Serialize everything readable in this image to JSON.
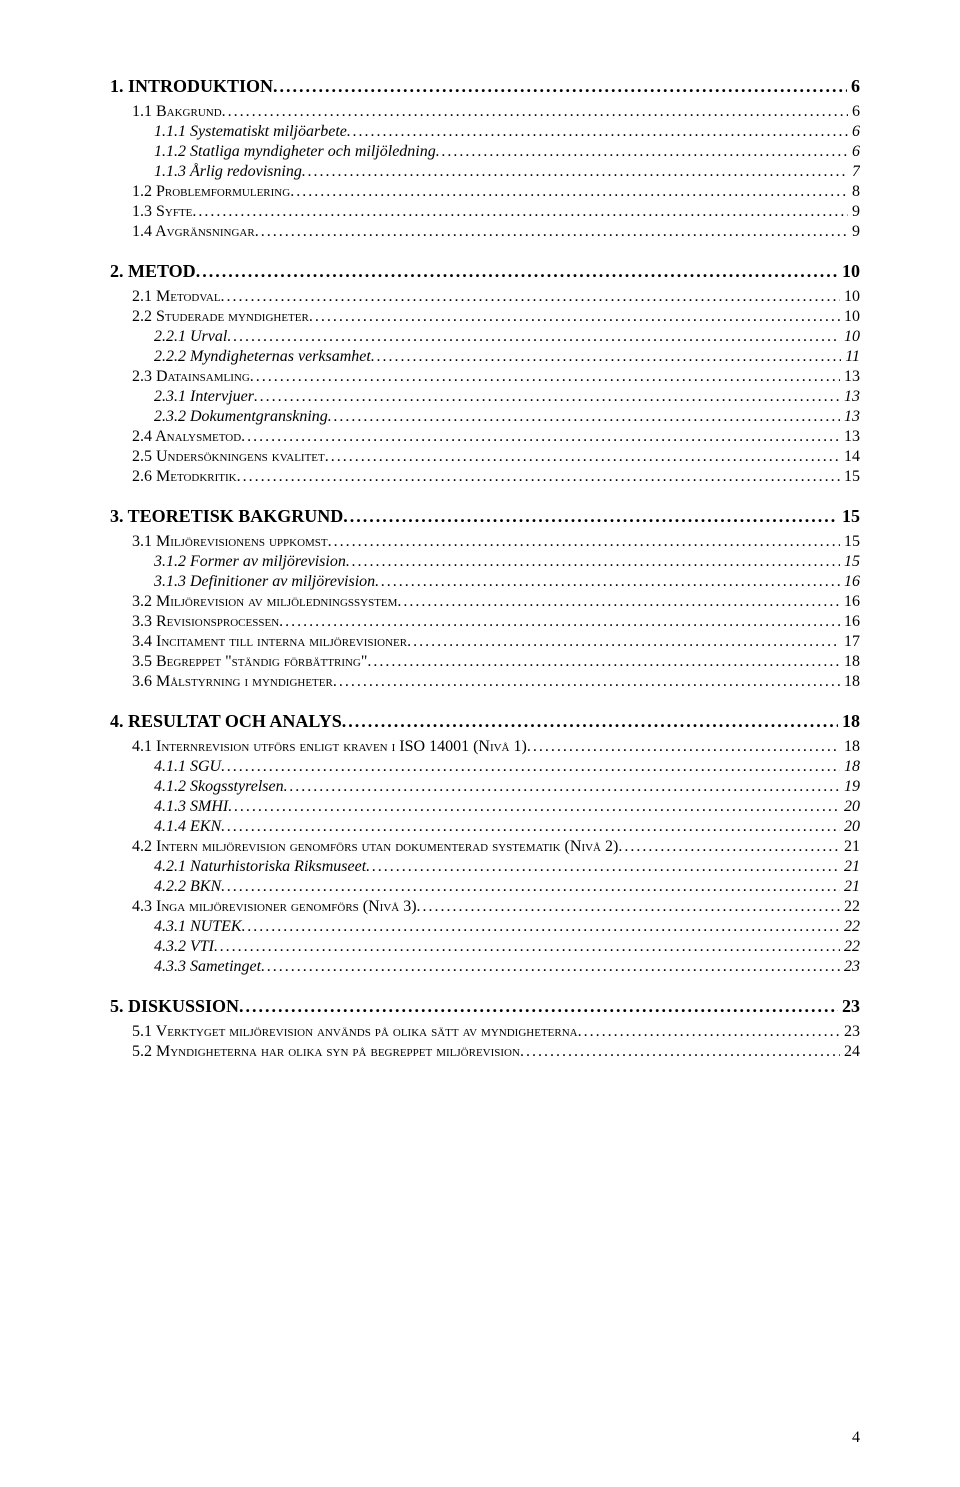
{
  "page_number": "4",
  "entries": [
    {
      "level": 1,
      "label": "1. INTRODUKTION",
      "page": "6"
    },
    {
      "level": 2,
      "label": "1.1 Bakgrund",
      "page": "6"
    },
    {
      "level": 3,
      "label": "1.1.1 Systematiskt miljöarbete",
      "page": "6"
    },
    {
      "level": 3,
      "label": "1.1.2 Statliga myndigheter och miljöledning",
      "page": "6"
    },
    {
      "level": 3,
      "label": "1.1.3 Årlig redovisning",
      "page": "7"
    },
    {
      "level": 2,
      "label": "1.2 Problemformulering",
      "page": "8"
    },
    {
      "level": 2,
      "label": "1.3 Syfte",
      "page": "9"
    },
    {
      "level": 2,
      "label": "1.4 Avgränsningar",
      "page": "9"
    },
    {
      "level": 1,
      "label": "2. METOD",
      "page": "10"
    },
    {
      "level": 2,
      "label": "2.1 Metodval",
      "page": "10"
    },
    {
      "level": 2,
      "label": "2.2 Studerade myndigheter",
      "page": "10"
    },
    {
      "level": 3,
      "label": "2.2.1 Urval",
      "page": "10"
    },
    {
      "level": 3,
      "label": "2.2.2 Myndigheternas verksamhet",
      "page": "11"
    },
    {
      "level": 2,
      "label": "2.3 Datainsamling",
      "page": "13"
    },
    {
      "level": 3,
      "label": "2.3.1 Intervjuer",
      "page": "13"
    },
    {
      "level": 3,
      "label": "2.3.2 Dokumentgranskning",
      "page": "13"
    },
    {
      "level": 2,
      "label": "2.4 Analysmetod",
      "page": "13"
    },
    {
      "level": 2,
      "label": "2.5 Undersökningens kvalitet",
      "page": "14"
    },
    {
      "level": 2,
      "label": "2.6 Metodkritik",
      "page": "15"
    },
    {
      "level": 1,
      "label": "3.    TEORETISK BAKGRUND",
      "page": "15"
    },
    {
      "level": 2,
      "label": "3.1 Miljörevisionens uppkomst",
      "page": "15"
    },
    {
      "level": 3,
      "label": "3.1.2 Former av miljörevision",
      "page": "15"
    },
    {
      "level": 3,
      "label": "3.1.3 Definitioner av miljörevision",
      "page": "16"
    },
    {
      "level": 2,
      "label": "3.2 Miljörevision av miljöledningssystem",
      "page": "16"
    },
    {
      "level": 2,
      "label": "3.3 Revisionsprocessen",
      "page": "16"
    },
    {
      "level": 2,
      "label": "3.4 Incitament till interna miljörevisioner",
      "page": "17"
    },
    {
      "level": 2,
      "label": "3.5 Begreppet \"ständig förbättring\"",
      "page": "18"
    },
    {
      "level": 2,
      "label": "3.6 Målstyrning i myndigheter",
      "page": "18"
    },
    {
      "level": 1,
      "label": "4. RESULTAT OCH ANALYS",
      "page": "18"
    },
    {
      "level": 2,
      "label": "4.1 Internrevision utförs enligt kraven i ISO 14001 (Nivå 1)",
      "page": "18"
    },
    {
      "level": 3,
      "label": "4.1.1 SGU",
      "page": "18"
    },
    {
      "level": 3,
      "label": "4.1.2 Skogsstyrelsen",
      "page": "19"
    },
    {
      "level": 3,
      "label": "4.1.3 SMHI",
      "page": "20"
    },
    {
      "level": 3,
      "label": "4.1.4 EKN",
      "page": "20"
    },
    {
      "level": 2,
      "label": "4.2 Intern miljörevision genomförs utan dokumenterad systematik (Nivå 2)",
      "page": "21"
    },
    {
      "level": 3,
      "label": "4.2.1 Naturhistoriska Riksmuseet",
      "page": "21"
    },
    {
      "level": 3,
      "label": "4.2.2 BKN",
      "page": "21"
    },
    {
      "level": 2,
      "label": "4.3 Inga miljörevisioner genomförs (Nivå 3)",
      "page": "22"
    },
    {
      "level": 3,
      "label": "4.3.1 NUTEK",
      "page": "22"
    },
    {
      "level": 3,
      "label": "4.3.2 VTI",
      "page": "22"
    },
    {
      "level": 3,
      "label": "4.3.3 Sametinget",
      "page": "23"
    },
    {
      "level": 1,
      "label": "5. DISKUSSION",
      "page": "23"
    },
    {
      "level": 2,
      "label": "5.1 Verktyget miljörevision används på olika sätt av myndigheterna",
      "page": "23"
    },
    {
      "level": 2,
      "label": "5.2 Myndigheterna har olika syn på begreppet miljörevision",
      "page": "24"
    }
  ]
}
